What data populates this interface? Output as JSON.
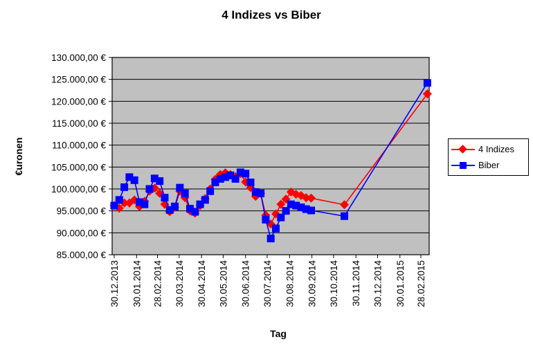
{
  "title": "4 Indizes vs Biber",
  "colors": {
    "plot_background": "#C0C0C0",
    "grid_line": "#000000",
    "axis_line": "#000000",
    "series_4_indizes": "#FF0000",
    "series_biber": "#0000FF",
    "legend_background": "#FFFFFF"
  },
  "chart_data": {
    "type": "line",
    "title": "4 Indizes vs Biber",
    "xlabel": "Tag",
    "ylabel": "€uronen",
    "ylim": [
      85000,
      130000
    ],
    "y_tick_step": 5000,
    "grid": "horizontal-only",
    "legend_position": "right-middle",
    "plot_area_fill": "#C0C0C0",
    "y_tick_labels": [
      "130.000,00 €",
      "125.000,00 €",
      "120.000,00 €",
      "115.000,00 €",
      "110.000,00 €",
      "105.000,00 €",
      "100.000,00 €",
      "95.000,00 €",
      "90.000,00 €",
      "85.000,00 €"
    ],
    "x_tick_labels": [
      "30.12.2013",
      "30.01.2014",
      "28.02.2014",
      "30.03.2014",
      "30.04.2014",
      "30.05.2014",
      "30.06.2014",
      "30.07.2014",
      "30.08.2014",
      "30.09.2014",
      "30.10.2014",
      "30.11.2014",
      "30.12.2014",
      "30.01.2015",
      "28.02.2015"
    ],
    "x": [
      "30.12.2013",
      "06.01.2014",
      "13.01.2014",
      "20.01.2014",
      "27.01.2014",
      "03.02.2014",
      "10.02.2014",
      "17.02.2014",
      "24.02.2014",
      "03.03.2014",
      "10.03.2014",
      "17.03.2014",
      "24.03.2014",
      "31.03.2014",
      "07.04.2014",
      "14.04.2014",
      "21.04.2014",
      "28.04.2014",
      "05.05.2014",
      "12.05.2014",
      "19.05.2014",
      "26.05.2014",
      "02.06.2014",
      "09.06.2014",
      "16.06.2014",
      "23.06.2014",
      "30.06.2014",
      "07.07.2014",
      "14.07.2014",
      "21.07.2014",
      "28.07.2014",
      "04.08.2014",
      "11.08.2014",
      "18.08.2014",
      "25.08.2014",
      "01.09.2014",
      "08.09.2014",
      "15.09.2014",
      "22.09.2014",
      "29.09.2014",
      "14.11.2014",
      "09.03.2015"
    ],
    "series": [
      {
        "name": "4 Indizes",
        "color": "#FF0000",
        "marker": "diamond",
        "values": [
          96200,
          95600,
          96800,
          96800,
          97500,
          96000,
          97200,
          99500,
          100200,
          99000,
          96500,
          94800,
          95800,
          99500,
          98000,
          95000,
          94500,
          96200,
          97800,
          100000,
          102200,
          103300,
          103700,
          103300,
          102800,
          103500,
          101600,
          100300,
          98300,
          99000,
          94000,
          92000,
          94300,
          96500,
          97700,
          99300,
          98800,
          98500,
          98000,
          97900,
          96400,
          121700
        ]
      },
      {
        "name": "Biber",
        "color": "#0000FF",
        "marker": "square",
        "values": [
          96200,
          97500,
          100400,
          102700,
          102000,
          97000,
          96500,
          100000,
          102400,
          101800,
          98000,
          95200,
          96000,
          100300,
          99000,
          95500,
          94800,
          96500,
          97500,
          99500,
          101500,
          102300,
          102700,
          103100,
          102300,
          103800,
          103500,
          101500,
          99300,
          99000,
          93000,
          88700,
          91000,
          93500,
          95000,
          96500,
          96200,
          95800,
          95400,
          95100,
          93800,
          124200
        ]
      }
    ]
  }
}
